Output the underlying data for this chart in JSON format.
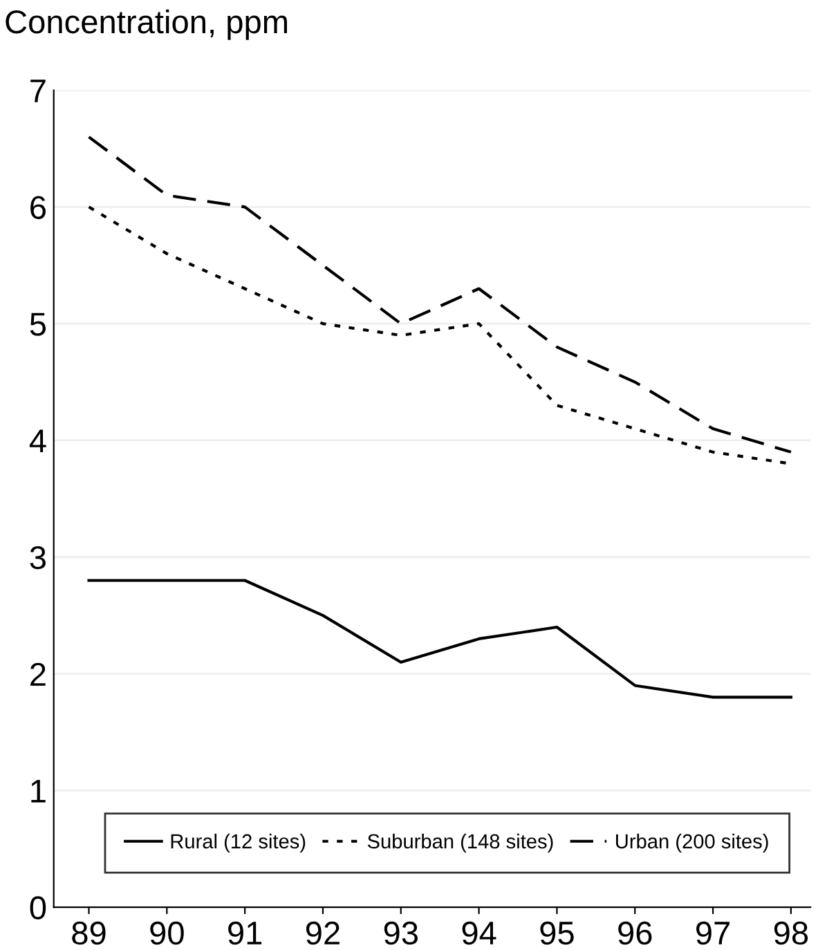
{
  "chart_data": {
    "type": "line",
    "ylabel": "Concentration, ppm",
    "categories": [
      "89",
      "90",
      "91",
      "92",
      "93",
      "94",
      "95",
      "96",
      "97",
      "98"
    ],
    "ylim": [
      0,
      7
    ],
    "yticks": [
      0,
      1,
      2,
      3,
      4,
      5,
      6,
      7
    ],
    "grid": "y",
    "legend": "bottom",
    "marker": "none",
    "series": [
      {
        "name": "Rural (12 sites)",
        "color": "#000000",
        "line_style": "solid",
        "values": [
          2.8,
          2.8,
          2.8,
          2.5,
          2.1,
          2.3,
          2.4,
          1.9,
          1.8,
          1.8
        ]
      },
      {
        "name": "Suburban (148 sites)",
        "color": "#000000",
        "line_style": "dotted",
        "values": [
          6.0,
          5.6,
          5.3,
          5.0,
          4.9,
          5.0,
          4.3,
          4.1,
          3.9,
          3.8
        ]
      },
      {
        "name": "Urban (200 sites)",
        "color": "#000000",
        "line_style": "dashed",
        "values": [
          6.6,
          6.1,
          6.0,
          5.5,
          5.0,
          5.3,
          4.8,
          4.5,
          4.1,
          3.9
        ]
      }
    ]
  }
}
